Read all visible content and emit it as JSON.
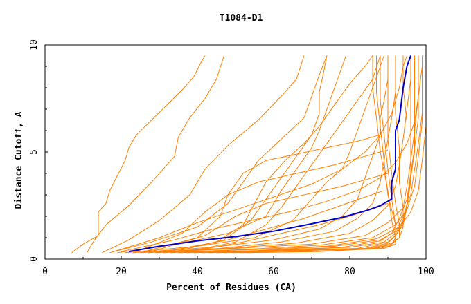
{
  "chart_data": {
    "type": "line",
    "title": "T1084-D1",
    "xlabel": "Percent of Residues (CA)",
    "ylabel": "Distance Cutoff, A",
    "xlim": [
      0,
      100
    ],
    "ylim": [
      0,
      10
    ],
    "x_ticks": [
      "0",
      "20",
      "40",
      "60",
      "80",
      "100"
    ],
    "y_ticks": [
      "0",
      "5",
      "10"
    ],
    "grid": false,
    "colors": {
      "models": "#ff8000",
      "highlight": "#0000cc",
      "axes": "#000000"
    },
    "highlight_series": {
      "x": [
        22,
        30,
        40,
        50,
        60,
        70,
        78,
        85,
        88,
        91,
        91,
        92,
        92,
        93,
        94,
        95,
        96
      ],
      "y": [
        0.35,
        0.6,
        0.85,
        1.05,
        1.3,
        1.65,
        1.95,
        2.3,
        2.5,
        2.8,
        3.6,
        4.2,
        6.0,
        6.5,
        8.0,
        9.0,
        9.5
      ]
    },
    "model_series": [
      [
        [
          7,
          0.3
        ],
        [
          10,
          0.7
        ],
        [
          14,
          1.1
        ],
        [
          14,
          2.2
        ],
        [
          16,
          2.6
        ],
        [
          17,
          3.2
        ],
        [
          21,
          4.6
        ],
        [
          22,
          5.2
        ],
        [
          24,
          5.8
        ],
        [
          28,
          6.5
        ],
        [
          32,
          7.2
        ],
        [
          36,
          7.9
        ],
        [
          39,
          8.5
        ],
        [
          41,
          9.2
        ],
        [
          42,
          9.5
        ]
      ],
      [
        [
          11,
          0.3
        ],
        [
          13,
          0.9
        ],
        [
          16,
          1.6
        ],
        [
          22,
          2.5
        ],
        [
          28,
          3.6
        ],
        [
          34,
          4.8
        ],
        [
          35,
          5.7
        ],
        [
          38,
          6.6
        ],
        [
          42,
          7.5
        ],
        [
          45,
          8.4
        ],
        [
          47,
          9.5
        ]
      ],
      [
        [
          15,
          0.3
        ],
        [
          22,
          0.9
        ],
        [
          30,
          1.8
        ],
        [
          38,
          3.0
        ],
        [
          42,
          4.2
        ],
        [
          48,
          5.3
        ],
        [
          56,
          6.5
        ],
        [
          62,
          7.6
        ],
        [
          66,
          8.4
        ],
        [
          68,
          9.5
        ]
      ],
      [
        [
          17,
          0.3
        ],
        [
          28,
          0.8
        ],
        [
          40,
          1.5
        ],
        [
          48,
          2.6
        ],
        [
          52,
          3.6
        ],
        [
          56,
          4.6
        ],
        [
          62,
          5.6
        ],
        [
          68,
          6.6
        ],
        [
          70,
          7.6
        ],
        [
          72,
          8.6
        ],
        [
          74,
          9.5
        ]
      ],
      [
        [
          19,
          0.3
        ],
        [
          35,
          0.7
        ],
        [
          48,
          1.2
        ],
        [
          58,
          2.0
        ],
        [
          62,
          3.2
        ],
        [
          66,
          4.2
        ],
        [
          70,
          5.2
        ],
        [
          72,
          6.0
        ],
        [
          74,
          7.0
        ],
        [
          76,
          8.0
        ],
        [
          78,
          9.0
        ],
        [
          79,
          9.5
        ]
      ],
      [
        [
          21,
          0.3
        ],
        [
          40,
          0.6
        ],
        [
          55,
          1.0
        ],
        [
          65,
          1.8
        ],
        [
          70,
          2.8
        ],
        [
          74,
          3.6
        ],
        [
          78,
          4.2
        ],
        [
          80,
          5.0
        ],
        [
          82,
          6.0
        ],
        [
          84,
          7.0
        ],
        [
          86,
          8.0
        ],
        [
          88,
          9.0
        ],
        [
          89,
          9.5
        ]
      ],
      [
        [
          23,
          0.3
        ],
        [
          44,
          0.55
        ],
        [
          60,
          0.9
        ],
        [
          72,
          1.4
        ],
        [
          78,
          2.0
        ],
        [
          82,
          2.8
        ],
        [
          84,
          3.8
        ],
        [
          86,
          4.8
        ],
        [
          88,
          5.8
        ],
        [
          88,
          6.6
        ],
        [
          89,
          7.4
        ],
        [
          90,
          8.4
        ],
        [
          90,
          9.5
        ]
      ],
      [
        [
          25,
          0.3
        ],
        [
          46,
          0.5
        ],
        [
          62,
          0.8
        ],
        [
          76,
          1.3
        ],
        [
          82,
          1.9
        ],
        [
          86,
          2.6
        ],
        [
          88,
          3.6
        ],
        [
          89,
          4.6
        ],
        [
          90,
          5.6
        ],
        [
          91,
          6.6
        ],
        [
          92,
          7.8
        ],
        [
          92,
          9.5
        ]
      ],
      [
        [
          27,
          0.3
        ],
        [
          48,
          0.5
        ],
        [
          66,
          0.75
        ],
        [
          80,
          1.2
        ],
        [
          86,
          1.8
        ],
        [
          90,
          2.5
        ],
        [
          92,
          3.4
        ],
        [
          93,
          4.4
        ],
        [
          94,
          5.6
        ],
        [
          95,
          7.0
        ],
        [
          96,
          8.4
        ],
        [
          96,
          9.5
        ]
      ],
      [
        [
          29,
          0.3
        ],
        [
          50,
          0.5
        ],
        [
          70,
          0.7
        ],
        [
          84,
          1.1
        ],
        [
          90,
          1.7
        ],
        [
          94,
          2.4
        ],
        [
          95,
          3.4
        ],
        [
          96,
          4.6
        ],
        [
          97,
          6.0
        ],
        [
          98,
          7.6
        ],
        [
          98,
          9.5
        ]
      ],
      [
        [
          31,
          0.3
        ],
        [
          52,
          0.45
        ],
        [
          72,
          0.65
        ],
        [
          86,
          1.0
        ],
        [
          92,
          1.6
        ],
        [
          95,
          2.3
        ],
        [
          97,
          3.4
        ],
        [
          98,
          4.8
        ],
        [
          99,
          6.4
        ],
        [
          99,
          8.0
        ],
        [
          99,
          9.5
        ]
      ],
      [
        [
          33,
          0.3
        ],
        [
          55,
          0.45
        ],
        [
          74,
          0.6
        ],
        [
          87,
          0.95
        ],
        [
          93,
          1.5
        ],
        [
          96,
          2.2
        ],
        [
          98,
          3.2
        ],
        [
          99,
          4.6
        ],
        [
          100,
          6.2
        ],
        [
          100,
          7.8
        ],
        [
          100,
          9.5
        ]
      ],
      [
        [
          35,
          0.3
        ],
        [
          56,
          0.4
        ],
        [
          76,
          0.6
        ],
        [
          88,
          0.9
        ],
        [
          92,
          1.3
        ],
        [
          94,
          2.0
        ],
        [
          96,
          3.0
        ],
        [
          97,
          4.2
        ],
        [
          98,
          5.4
        ],
        [
          99,
          6.8
        ],
        [
          99,
          8.4
        ],
        [
          99,
          9.5
        ]
      ],
      [
        [
          37,
          0.3
        ],
        [
          58,
          0.4
        ],
        [
          78,
          0.55
        ],
        [
          88,
          0.85
        ],
        [
          91,
          1.2
        ],
        [
          93,
          1.9
        ],
        [
          95,
          2.8
        ],
        [
          96,
          4.0
        ],
        [
          97,
          5.2
        ],
        [
          98,
          6.6
        ],
        [
          98,
          8.2
        ],
        [
          98,
          9.5
        ]
      ],
      [
        [
          39,
          0.3
        ],
        [
          60,
          0.4
        ],
        [
          80,
          0.55
        ],
        [
          89,
          0.8
        ],
        [
          92,
          1.2
        ],
        [
          94,
          1.8
        ],
        [
          95,
          2.6
        ],
        [
          96,
          3.8
        ],
        [
          97,
          5.0
        ],
        [
          97,
          6.6
        ],
        [
          97,
          8.2
        ],
        [
          97,
          9.5
        ]
      ],
      [
        [
          41,
          0.3
        ],
        [
          62,
          0.4
        ],
        [
          82,
          0.5
        ],
        [
          90,
          0.8
        ],
        [
          92,
          1.1
        ],
        [
          94,
          1.7
        ],
        [
          95,
          2.5
        ],
        [
          96,
          3.6
        ],
        [
          96,
          5.0
        ],
        [
          96,
          6.6
        ],
        [
          96,
          8.0
        ],
        [
          96,
          9.5
        ]
      ],
      [
        [
          43,
          0.3
        ],
        [
          64,
          0.4
        ],
        [
          84,
          0.5
        ],
        [
          90,
          0.75
        ],
        [
          92,
          1.1
        ],
        [
          94,
          1.6
        ],
        [
          95,
          2.4
        ],
        [
          95,
          3.6
        ],
        [
          95,
          5.0
        ],
        [
          95,
          6.4
        ],
        [
          94,
          8.0
        ],
        [
          94,
          9.5
        ]
      ],
      [
        [
          45,
          0.3
        ],
        [
          66,
          0.4
        ],
        [
          85,
          0.5
        ],
        [
          91,
          0.75
        ],
        [
          93,
          1.0
        ],
        [
          94,
          1.5
        ],
        [
          94,
          2.4
        ],
        [
          93,
          3.6
        ],
        [
          93,
          5.2
        ],
        [
          92,
          6.8
        ],
        [
          92,
          8.4
        ],
        [
          92,
          9.5
        ]
      ],
      [
        [
          47,
          0.3
        ],
        [
          67,
          0.4
        ],
        [
          86,
          0.5
        ],
        [
          91,
          0.7
        ],
        [
          93,
          1.0
        ],
        [
          93,
          1.6
        ],
        [
          92,
          2.6
        ],
        [
          91,
          4.0
        ],
        [
          90,
          5.6
        ],
        [
          90,
          7.2
        ],
        [
          90,
          8.6
        ],
        [
          90,
          9.5
        ]
      ],
      [
        [
          49,
          0.3
        ],
        [
          69,
          0.4
        ],
        [
          87,
          0.5
        ],
        [
          91,
          0.7
        ],
        [
          92,
          1.0
        ],
        [
          92,
          1.6
        ],
        [
          91,
          2.8
        ],
        [
          90,
          4.2
        ],
        [
          89,
          5.8
        ],
        [
          88,
          7.4
        ],
        [
          88,
          8.8
        ],
        [
          88,
          9.5
        ]
      ],
      [
        [
          51,
          0.3
        ],
        [
          70,
          0.35
        ],
        [
          88,
          0.5
        ],
        [
          92,
          0.7
        ],
        [
          92,
          1.0
        ],
        [
          92,
          1.6
        ],
        [
          90,
          3.0
        ],
        [
          89,
          4.6
        ],
        [
          88,
          6.2
        ],
        [
          87,
          7.8
        ],
        [
          87,
          9.5
        ]
      ],
      [
        [
          53,
          0.3
        ],
        [
          72,
          0.35
        ],
        [
          89,
          0.5
        ],
        [
          92,
          0.7
        ],
        [
          92,
          1.0
        ],
        [
          91,
          1.8
        ],
        [
          90,
          3.2
        ],
        [
          88,
          5.0
        ],
        [
          87,
          6.6
        ],
        [
          86,
          8.0
        ],
        [
          86,
          9.5
        ]
      ],
      [
        [
          30,
          0.3
        ],
        [
          45,
          0.8
        ],
        [
          52,
          1.6
        ],
        [
          55,
          2.6
        ],
        [
          58,
          3.6
        ],
        [
          63,
          4.6
        ],
        [
          68,
          5.4
        ],
        [
          72,
          6.2
        ],
        [
          76,
          7.2
        ],
        [
          80,
          8.2
        ],
        [
          84,
          9.0
        ],
        [
          86,
          9.5
        ]
      ],
      [
        [
          33,
          0.3
        ],
        [
          47,
          0.9
        ],
        [
          54,
          1.8
        ],
        [
          58,
          2.8
        ],
        [
          62,
          3.8
        ],
        [
          66,
          4.8
        ],
        [
          70,
          5.8
        ],
        [
          72,
          6.8
        ],
        [
          72,
          7.8
        ],
        [
          73,
          8.6
        ],
        [
          74,
          9.5
        ]
      ],
      [
        [
          36,
          0.3
        ],
        [
          50,
          0.8
        ],
        [
          58,
          1.6
        ],
        [
          62,
          2.4
        ],
        [
          66,
          3.4
        ],
        [
          70,
          4.4
        ],
        [
          74,
          5.4
        ],
        [
          78,
          6.4
        ],
        [
          82,
          7.4
        ],
        [
          86,
          8.4
        ],
        [
          88,
          9.5
        ]
      ],
      [
        [
          26,
          0.35
        ],
        [
          40,
          1.0
        ],
        [
          46,
          2.0
        ],
        [
          48,
          3.0
        ],
        [
          52,
          4.0
        ],
        [
          58,
          4.6
        ],
        [
          66,
          4.9
        ],
        [
          74,
          5.2
        ],
        [
          82,
          5.5
        ],
        [
          88,
          5.8
        ]
      ],
      [
        [
          24,
          0.35
        ],
        [
          36,
          1.2
        ],
        [
          42,
          2.2
        ],
        [
          48,
          3.0
        ],
        [
          56,
          3.6
        ],
        [
          66,
          4.0
        ],
        [
          76,
          4.4
        ],
        [
          84,
          4.8
        ],
        [
          90,
          5.1
        ]
      ],
      [
        [
          28,
          0.35
        ],
        [
          42,
          1.1
        ],
        [
          50,
          2.0
        ],
        [
          58,
          2.6
        ],
        [
          68,
          3.0
        ],
        [
          78,
          3.4
        ],
        [
          86,
          3.8
        ],
        [
          90,
          4.0
        ]
      ],
      [
        [
          32,
          0.35
        ],
        [
          48,
          0.9
        ],
        [
          58,
          1.4
        ],
        [
          68,
          1.9
        ],
        [
          76,
          2.4
        ],
        [
          84,
          2.9
        ],
        [
          89,
          3.2
        ]
      ],
      [
        [
          38,
          0.35
        ],
        [
          52,
          0.8
        ],
        [
          62,
          1.2
        ],
        [
          72,
          1.6
        ],
        [
          80,
          2.0
        ],
        [
          87,
          2.4
        ],
        [
          90,
          2.6
        ]
      ],
      [
        [
          20,
          0.35
        ],
        [
          34,
          0.9
        ],
        [
          44,
          1.4
        ],
        [
          54,
          1.8
        ],
        [
          64,
          2.2
        ],
        [
          74,
          2.7
        ],
        [
          82,
          3.2
        ],
        [
          88,
          3.8
        ],
        [
          92,
          4.5
        ],
        [
          95,
          5.4
        ],
        [
          97,
          6.4
        ],
        [
          98,
          7.6
        ],
        [
          99,
          9.0
        ],
        [
          99,
          9.5
        ]
      ],
      [
        [
          18,
          0.35
        ],
        [
          30,
          1.0
        ],
        [
          40,
          1.7
        ],
        [
          50,
          2.3
        ],
        [
          60,
          2.9
        ],
        [
          70,
          3.5
        ],
        [
          78,
          4.2
        ],
        [
          84,
          5.0
        ],
        [
          88,
          5.8
        ],
        [
          91,
          6.8
        ],
        [
          93,
          8.0
        ],
        [
          94,
          9.0
        ],
        [
          95,
          9.5
        ]
      ]
    ]
  }
}
